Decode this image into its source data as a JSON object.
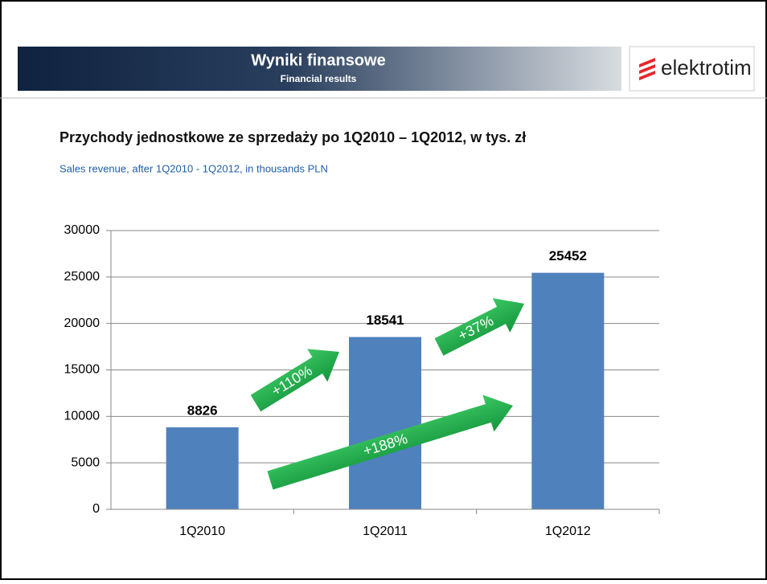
{
  "header": {
    "title": "Wyniki finansowe",
    "subtitle": "Financial results",
    "logo": "elektrotim"
  },
  "chart_data": {
    "type": "bar",
    "title": "Przychody jednostkowe ze sprzedaży po 1Q2010 – 1Q2012, w tys. zł",
    "subtitle": "Sales revenue, after 1Q2010 - 1Q2012, in thousands PLN",
    "categories": [
      "1Q2010",
      "1Q2011",
      "1Q2012"
    ],
    "values": [
      8826,
      18541,
      25452
    ],
    "color": "#4f81bd",
    "ylim": [
      0,
      30000
    ],
    "yticks": [
      0,
      5000,
      10000,
      15000,
      20000,
      25000,
      30000
    ],
    "grid": true,
    "annotations": [
      "+110%",
      "+37%",
      "+188%"
    ]
  }
}
